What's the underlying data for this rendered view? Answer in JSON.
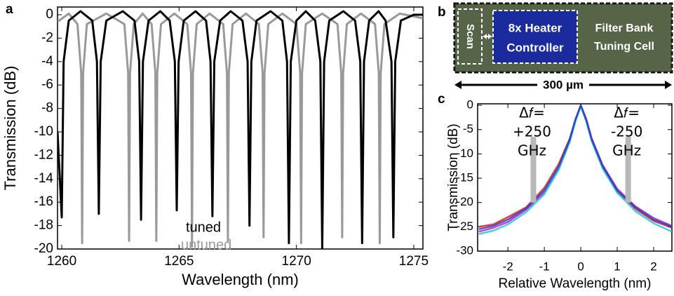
{
  "chart_data": [
    {
      "type": "line",
      "panel_label": "a",
      "xlabel": "Wavelength (nm)",
      "ylabel": "Transmission (dB)",
      "xlim": [
        1259.82,
        1275.39
      ],
      "ylim": [
        -20,
        0.66
      ],
      "xticks": [
        1260,
        1265,
        1270,
        1275
      ],
      "yticks": [
        0,
        -2,
        -4,
        -6,
        -8,
        -10,
        -12,
        -14,
        -16,
        -18,
        -20
      ],
      "series": [
        {
          "name": "untuned",
          "color": "#999999",
          "x": [
            1259.82,
            1260.3,
            1260.67,
            1260.83,
            1260.87,
            1260.91,
            1261.07,
            1261.9,
            1262.67,
            1262.83,
            1262.87,
            1262.91,
            1263.07,
            1263.45,
            1263.83,
            1263.99,
            1264.03,
            1264.07,
            1264.23,
            1264.8,
            1265.35,
            1265.51,
            1265.55,
            1265.59,
            1265.75,
            1266.3,
            1266.88,
            1267.04,
            1267.08,
            1267.12,
            1267.28,
            1267.85,
            1268.4,
            1268.56,
            1268.6,
            1268.64,
            1268.8,
            1269.4,
            1270.0,
            1270.16,
            1270.2,
            1270.24,
            1270.4,
            1271.1,
            1271.75,
            1271.91,
            1271.95,
            1271.99,
            1272.15,
            1272.75,
            1273.35,
            1273.51,
            1273.55,
            1273.59,
            1273.75,
            1274.4,
            1275.39
          ],
          "values": [
            -0.6,
            0.1,
            -0.8,
            -5,
            -19.5,
            -5,
            -0.8,
            0.1,
            -0.8,
            -5,
            -19.3,
            -5,
            -0.8,
            0.1,
            -0.8,
            -5,
            -19.3,
            -5,
            -0.8,
            0.1,
            -0.8,
            -5,
            -19.8,
            -5,
            -0.8,
            0.1,
            -0.8,
            -5,
            -19.3,
            -5,
            -0.8,
            0.1,
            -0.8,
            -5,
            -19,
            -5,
            -0.8,
            0.1,
            -0.8,
            -5,
            -19.5,
            -5,
            -0.8,
            0.1,
            -0.8,
            -5,
            -19,
            -5,
            -0.8,
            0.1,
            -0.8,
            -5,
            -19.5,
            -5,
            -0.8,
            0.1,
            -0.3
          ]
        },
        {
          "name": "tuned",
          "color": "#000000",
          "x": [
            1259.82,
            1260.0,
            1260.08,
            1260.3,
            1260.8,
            1261.3,
            1261.5,
            1261.58,
            1261.66,
            1261.9,
            1262.6,
            1263.1,
            1263.3,
            1263.38,
            1263.46,
            1263.7,
            1264.2,
            1264.6,
            1264.82,
            1264.9,
            1264.98,
            1265.2,
            1265.7,
            1266.15,
            1266.34,
            1266.42,
            1266.5,
            1266.75,
            1267.2,
            1267.7,
            1267.92,
            1268.0,
            1268.08,
            1268.3,
            1268.9,
            1269.4,
            1269.6,
            1269.68,
            1269.76,
            1270.0,
            1270.4,
            1270.8,
            1271.02,
            1271.1,
            1271.18,
            1271.4,
            1272.0,
            1272.5,
            1272.72,
            1272.8,
            1272.88,
            1273.1,
            1273.5,
            1273.8,
            1274.05,
            1274.13,
            1274.21,
            1274.45,
            1275.0,
            1275.39
          ],
          "values": [
            -10,
            -17.3,
            -4,
            -0.5,
            0.3,
            -0.5,
            -4,
            -17,
            -4,
            -0.5,
            0.3,
            -0.5,
            -4,
            -17.5,
            -4,
            -0.5,
            0.3,
            -0.5,
            -4,
            -16.7,
            -4,
            -0.5,
            0.3,
            -0.5,
            -4,
            -17.2,
            -4,
            -0.5,
            0.3,
            -0.5,
            -4,
            -18,
            -4,
            -0.5,
            0.3,
            -0.5,
            -4,
            -19.5,
            -4,
            -0.5,
            0.3,
            -0.5,
            -4,
            -20,
            -4,
            -0.5,
            0.3,
            -0.5,
            -4,
            -19.5,
            -4,
            -0.5,
            0.3,
            -0.5,
            -4,
            -19,
            -4,
            -0.5,
            0,
            0
          ]
        }
      ]
    },
    {
      "type": "line",
      "panel_label": "c",
      "xlabel": "Relative Wavelength (nm)",
      "ylabel": "Transmission (dB)",
      "xlim": [
        -2.83,
        2.5
      ],
      "ylim": [
        -30,
        0.3
      ],
      "xticks": [
        -2,
        -1,
        0,
        1,
        2
      ],
      "yticks": [
        0,
        -5,
        -10,
        -15,
        -20,
        -25,
        -30
      ],
      "x": [
        -2.8,
        -2.4,
        -2,
        -1.5,
        -1,
        -0.6,
        -0.3,
        -0.15,
        0,
        0.15,
        0.3,
        0.6,
        1,
        1.5,
        2,
        2.5
      ],
      "series": [
        {
          "color": "#e02020",
          "values": [
            -25,
            -24.5,
            -23,
            -21,
            -17,
            -12,
            -6.8,
            -3,
            0,
            -3.2,
            -7.2,
            -12.8,
            -17.8,
            -21.3,
            -23.8,
            -25.2
          ]
        },
        {
          "color": "#c020c0",
          "values": [
            -26,
            -25.2,
            -24,
            -21.5,
            -18,
            -13,
            -7.3,
            -3.3,
            0,
            -2.8,
            -6.8,
            -12.3,
            -17.2,
            -20.8,
            -23.2,
            -24.8
          ]
        },
        {
          "color": "#20c8e8",
          "values": [
            -26.5,
            -25.8,
            -24.5,
            -22,
            -18.3,
            -13.2,
            -7.5,
            -3.4,
            -0.2,
            -3.3,
            -7.4,
            -13,
            -18,
            -21.8,
            -24.3,
            -26
          ]
        },
        {
          "color": "#1f3fbf",
          "values": [
            -25.5,
            -24.8,
            -23.5,
            -21.2,
            -17.5,
            -12.5,
            -7,
            -3,
            0,
            -3,
            -7,
            -12.5,
            -17.5,
            -21,
            -23.5,
            -25
          ]
        }
      ],
      "annotations": [
        {
          "text": [
            "Δ𝑓=",
            "+250",
            "GHz"
          ],
          "x": -1.3,
          "y": [
            -6.5,
            -20
          ]
        },
        {
          "text": [
            "Δ𝑓=",
            "-250",
            "GHz"
          ],
          "x": 1.3,
          "y": [
            -6.5,
            -20
          ]
        }
      ]
    }
  ],
  "image_panel": {
    "panel_label": "b",
    "scan_label": "Scan",
    "controller_label": [
      "8x Heater",
      "Controller"
    ],
    "cell_label": [
      "Filter Bank",
      "Tuning Cell"
    ],
    "scale_bar": "300 µm"
  }
}
